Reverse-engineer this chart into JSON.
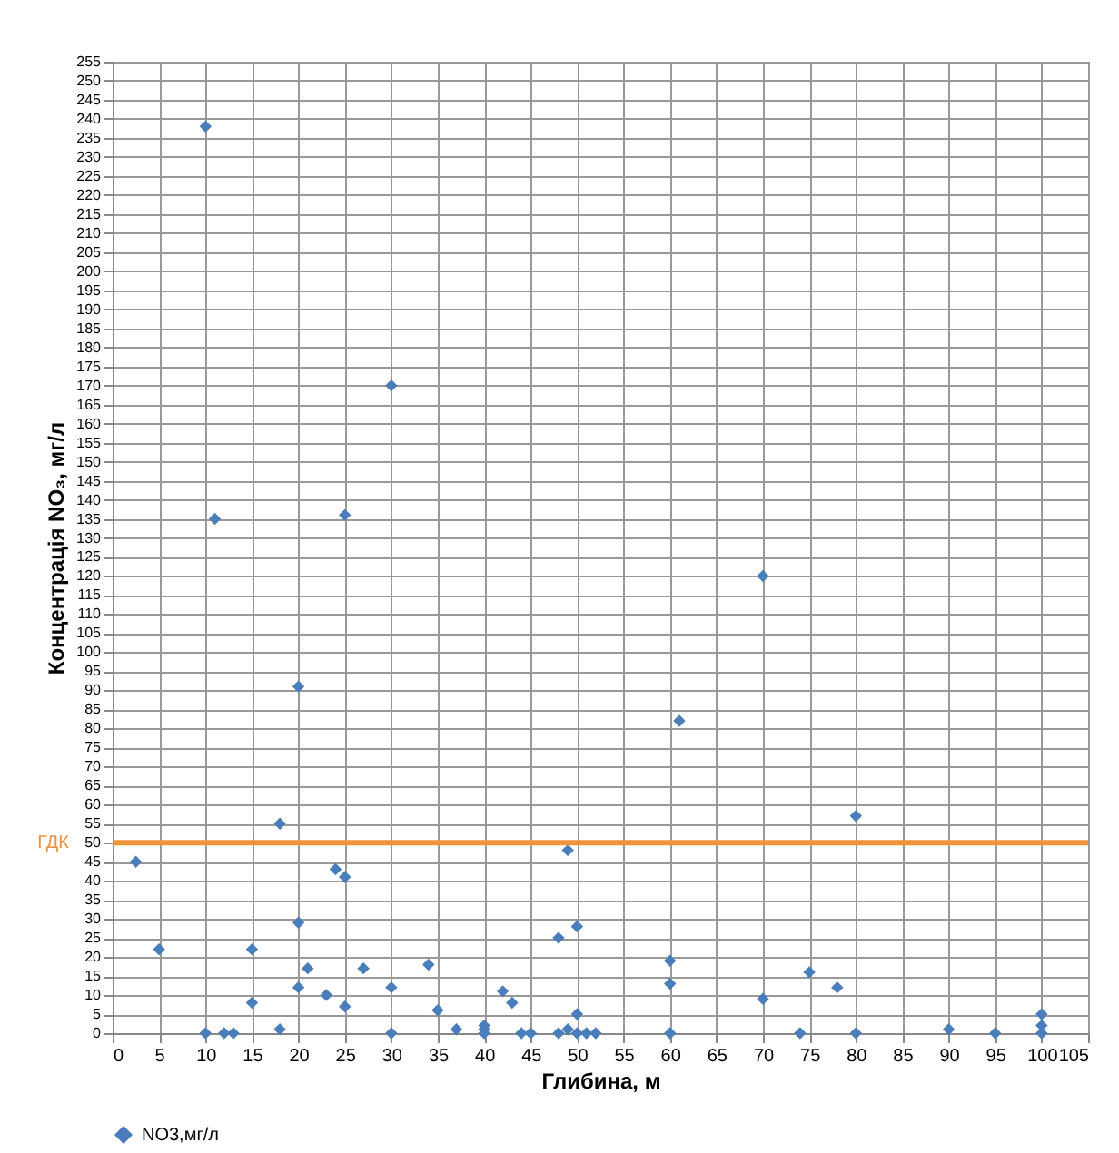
{
  "chart_data": {
    "type": "scatter",
    "xlabel": "Глибина, м",
    "ylabel": "Концентрація NO₃, мг/л",
    "x": [
      2.5,
      5,
      10,
      10,
      11,
      12,
      13,
      15,
      15,
      18,
      18,
      20,
      20,
      20,
      21,
      23,
      24,
      25,
      25,
      25,
      27,
      30,
      30,
      30,
      34,
      35,
      37,
      40,
      40,
      40,
      42,
      43,
      44,
      45,
      48,
      48,
      49,
      49,
      50,
      50,
      50,
      51,
      52,
      60,
      60,
      60,
      61,
      70,
      70,
      74,
      75,
      78,
      80,
      80,
      90,
      95,
      100,
      100,
      100
    ],
    "series": [
      {
        "name": "NO3,мг/л",
        "color": "#4a7ebb",
        "values": [
          45,
          22,
          0,
          238,
          135,
          0,
          0,
          22,
          8,
          55,
          1,
          91,
          29,
          12,
          17,
          10,
          43,
          41,
          136,
          7,
          17,
          170,
          12,
          0,
          18,
          6,
          1,
          0,
          1,
          2,
          11,
          8,
          0,
          0,
          25,
          0,
          1,
          48,
          28,
          5,
          0,
          0,
          0,
          19,
          13,
          0,
          82,
          120,
          9,
          0,
          16,
          12,
          57,
          0,
          1,
          0,
          5,
          0,
          2
        ]
      }
    ],
    "xlim": [
      0,
      105
    ],
    "xticks": [
      0,
      5,
      10,
      15,
      20,
      25,
      30,
      35,
      40,
      45,
      50,
      55,
      60,
      65,
      70,
      75,
      80,
      85,
      90,
      95,
      100,
      105
    ],
    "ylim": [
      0,
      255
    ],
    "yticks": [
      0,
      5,
      10,
      15,
      20,
      25,
      30,
      35,
      40,
      45,
      50,
      55,
      60,
      65,
      70,
      75,
      80,
      85,
      90,
      95,
      100,
      105,
      110,
      115,
      120,
      125,
      130,
      135,
      140,
      145,
      150,
      155,
      160,
      165,
      170,
      175,
      180,
      185,
      190,
      195,
      200,
      205,
      210,
      215,
      220,
      225,
      230,
      235,
      240,
      245,
      250,
      255
    ],
    "ref_lines": [
      {
        "axis": "y",
        "value": 50,
        "label": "ГДК",
        "color": "#f0923a"
      }
    ],
    "grid": true,
    "legend": "bottom",
    "marker": "diamond"
  }
}
